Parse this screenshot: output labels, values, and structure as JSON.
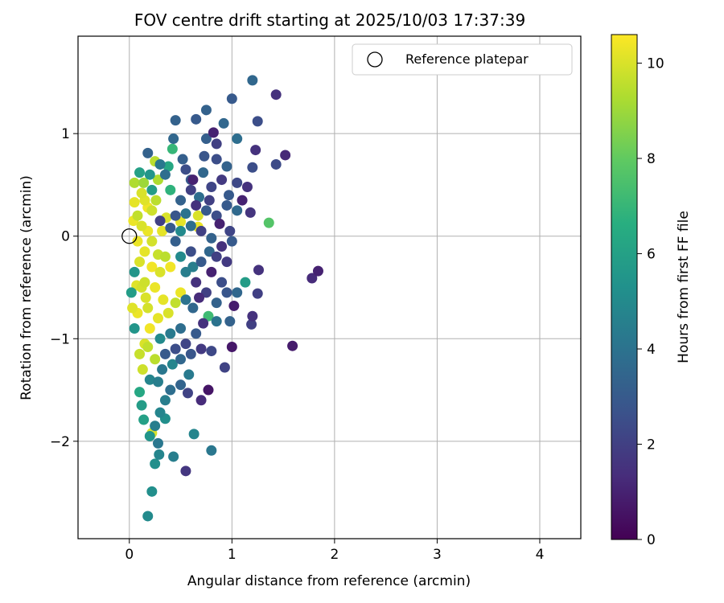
{
  "chart_data": {
    "type": "scatter",
    "title": "FOV centre drift starting at 2025/10/03 17:37:39",
    "xlabel": "Angular distance from reference (arcmin)",
    "ylabel": "Rotation from reference (arcmin)",
    "xlim": [
      -0.5,
      4.4
    ],
    "ylim": [
      -2.95,
      1.95
    ],
    "xticks": [
      0,
      1,
      2,
      3,
      4
    ],
    "yticks": [
      -2,
      -1,
      0,
      1
    ],
    "grid": true,
    "legend": {
      "position": "top-right",
      "entries": [
        {
          "label": "Reference platepar",
          "marker": "open-circle"
        }
      ]
    },
    "reference_point": {
      "x": 0,
      "y": 0
    },
    "colorbar": {
      "label": "Hours from first FF file",
      "min": 0,
      "max": 10.6,
      "ticks": [
        0,
        2,
        4,
        6,
        8,
        10
      ],
      "colormap": "viridis"
    },
    "points": [
      {
        "x": 1.2,
        "y": 1.52,
        "h": 3.5
      },
      {
        "x": 1.43,
        "y": 1.38,
        "h": 1.5
      },
      {
        "x": 1.0,
        "y": 1.34,
        "h": 3.0
      },
      {
        "x": 0.75,
        "y": 1.23,
        "h": 3.3
      },
      {
        "x": 1.25,
        "y": 1.12,
        "h": 2.5
      },
      {
        "x": 0.65,
        "y": 1.14,
        "h": 3.0
      },
      {
        "x": 0.45,
        "y": 1.13,
        "h": 3.3
      },
      {
        "x": 0.92,
        "y": 1.1,
        "h": 3.5
      },
      {
        "x": 0.82,
        "y": 1.01,
        "h": 1.0
      },
      {
        "x": 1.52,
        "y": 0.79,
        "h": 1.2
      },
      {
        "x": 1.23,
        "y": 0.84,
        "h": 1.5
      },
      {
        "x": 1.43,
        "y": 0.7,
        "h": 2.4
      },
      {
        "x": 1.05,
        "y": 0.95,
        "h": 3.8
      },
      {
        "x": 0.85,
        "y": 0.9,
        "h": 2.0
      },
      {
        "x": 0.75,
        "y": 0.95,
        "h": 3.2
      },
      {
        "x": 0.43,
        "y": 0.95,
        "h": 3.5
      },
      {
        "x": 0.18,
        "y": 0.81,
        "h": 3.3
      },
      {
        "x": 0.42,
        "y": 0.85,
        "h": 7.0
      },
      {
        "x": 0.25,
        "y": 0.73,
        "h": 9.5
      },
      {
        "x": 0.1,
        "y": 0.62,
        "h": 6.0
      },
      {
        "x": 0.14,
        "y": 0.52,
        "h": 9.0
      },
      {
        "x": 0.2,
        "y": 0.6,
        "h": 5.5
      },
      {
        "x": 0.28,
        "y": 0.55,
        "h": 9.3
      },
      {
        "x": 0.35,
        "y": 0.6,
        "h": 3.8
      },
      {
        "x": 0.4,
        "y": 0.45,
        "h": 6.8
      },
      {
        "x": 0.55,
        "y": 0.65,
        "h": 2.5
      },
      {
        "x": 0.62,
        "y": 0.55,
        "h": 1.0
      },
      {
        "x": 0.72,
        "y": 0.62,
        "h": 3.5
      },
      {
        "x": 0.8,
        "y": 0.48,
        "h": 2.2
      },
      {
        "x": 0.9,
        "y": 0.55,
        "h": 1.8
      },
      {
        "x": 0.97,
        "y": 0.4,
        "h": 3.0
      },
      {
        "x": 1.05,
        "y": 0.52,
        "h": 2.3
      },
      {
        "x": 1.15,
        "y": 0.48,
        "h": 1.5
      },
      {
        "x": 1.2,
        "y": 0.67,
        "h": 2.5
      },
      {
        "x": 1.1,
        "y": 0.35,
        "h": 1.0
      },
      {
        "x": 1.05,
        "y": 0.25,
        "h": 3.6
      },
      {
        "x": 1.18,
        "y": 0.23,
        "h": 1.6
      },
      {
        "x": 1.36,
        "y": 0.13,
        "h": 7.7
      },
      {
        "x": 0.95,
        "y": 0.3,
        "h": 3.0
      },
      {
        "x": 0.85,
        "y": 0.2,
        "h": 2.5
      },
      {
        "x": 0.75,
        "y": 0.25,
        "h": 3.0
      },
      {
        "x": 0.65,
        "y": 0.3,
        "h": 1.5
      },
      {
        "x": 0.55,
        "y": 0.22,
        "h": 4.0
      },
      {
        "x": 0.45,
        "y": 0.2,
        "h": 2.8
      },
      {
        "x": 0.5,
        "y": 0.35,
        "h": 3.3
      },
      {
        "x": 0.6,
        "y": 0.45,
        "h": 2.0
      },
      {
        "x": 0.68,
        "y": 0.38,
        "h": 3.8
      },
      {
        "x": 0.78,
        "y": 0.35,
        "h": 2.0
      },
      {
        "x": 0.88,
        "y": 0.12,
        "h": 1.0
      },
      {
        "x": 0.98,
        "y": 0.05,
        "h": 2.2
      },
      {
        "x": 1.0,
        "y": -0.05,
        "h": 3.0
      },
      {
        "x": 0.9,
        "y": -0.1,
        "h": 1.5
      },
      {
        "x": 0.8,
        "y": -0.02,
        "h": 3.3
      },
      {
        "x": 0.7,
        "y": 0.05,
        "h": 2.0
      },
      {
        "x": 0.6,
        "y": 0.1,
        "h": 3.8
      },
      {
        "x": 0.5,
        "y": 0.05,
        "h": 5.0
      },
      {
        "x": 0.4,
        "y": 0.08,
        "h": 3.0
      },
      {
        "x": 0.3,
        "y": 0.15,
        "h": 2.0
      },
      {
        "x": 0.22,
        "y": 0.25,
        "h": 9.8
      },
      {
        "x": 0.15,
        "y": 0.35,
        "h": 10.1
      },
      {
        "x": 0.05,
        "y": 0.33,
        "h": 10.2
      },
      {
        "x": 0.08,
        "y": 0.2,
        "h": 9.6
      },
      {
        "x": 0.12,
        "y": 0.1,
        "h": 10.0
      },
      {
        "x": 0.18,
        "y": 0.05,
        "h": 10.3
      },
      {
        "x": 0.22,
        "y": -0.05,
        "h": 9.9
      },
      {
        "x": 0.15,
        "y": -0.15,
        "h": 10.2
      },
      {
        "x": 0.1,
        "y": -0.25,
        "h": 10.0
      },
      {
        "x": 0.05,
        "y": -0.35,
        "h": 5.5
      },
      {
        "x": 0.15,
        "y": -0.45,
        "h": 9.8
      },
      {
        "x": 0.25,
        "y": -0.5,
        "h": 10.3
      },
      {
        "x": 0.3,
        "y": -0.35,
        "h": 10.0
      },
      {
        "x": 0.35,
        "y": -0.2,
        "h": 9.5
      },
      {
        "x": 0.4,
        "y": -0.3,
        "h": 10.4
      },
      {
        "x": 0.45,
        "y": -0.05,
        "h": 3.2
      },
      {
        "x": 0.5,
        "y": -0.2,
        "h": 5.0
      },
      {
        "x": 0.55,
        "y": -0.35,
        "h": 4.5
      },
      {
        "x": 0.6,
        "y": -0.15,
        "h": 2.5
      },
      {
        "x": 0.65,
        "y": -0.45,
        "h": 1.5
      },
      {
        "x": 0.7,
        "y": -0.25,
        "h": 3.0
      },
      {
        "x": 0.75,
        "y": -0.55,
        "h": 2.0
      },
      {
        "x": 0.8,
        "y": -0.35,
        "h": 1.0
      },
      {
        "x": 0.85,
        "y": -0.65,
        "h": 3.3
      },
      {
        "x": 0.9,
        "y": -0.45,
        "h": 2.5
      },
      {
        "x": 0.95,
        "y": -0.25,
        "h": 1.8
      },
      {
        "x": 1.05,
        "y": -0.55,
        "h": 3.5
      },
      {
        "x": 1.13,
        "y": -0.45,
        "h": 5.8
      },
      {
        "x": 1.25,
        "y": -0.56,
        "h": 2.0
      },
      {
        "x": 1.26,
        "y": -0.33,
        "h": 1.5
      },
      {
        "x": 1.78,
        "y": -0.41,
        "h": 1.3
      },
      {
        "x": 1.84,
        "y": -0.34,
        "h": 1.0
      },
      {
        "x": 1.2,
        "y": -0.78,
        "h": 1.5
      },
      {
        "x": 1.19,
        "y": -0.86,
        "h": 2.0
      },
      {
        "x": 0.98,
        "y": -0.83,
        "h": 3.3
      },
      {
        "x": 1.02,
        "y": -0.68,
        "h": 0.8
      },
      {
        "x": 0.85,
        "y": -0.83,
        "h": 4.0
      },
      {
        "x": 0.77,
        "y": -0.78,
        "h": 7.2
      },
      {
        "x": 0.72,
        "y": -0.85,
        "h": 1.5
      },
      {
        "x": 0.65,
        "y": -0.95,
        "h": 3.0
      },
      {
        "x": 0.55,
        "y": -1.05,
        "h": 2.2
      },
      {
        "x": 0.5,
        "y": -0.9,
        "h": 3.8
      },
      {
        "x": 0.45,
        "y": -1.1,
        "h": 2.5
      },
      {
        "x": 0.4,
        "y": -0.95,
        "h": 4.3
      },
      {
        "x": 0.35,
        "y": -1.15,
        "h": 3.0
      },
      {
        "x": 0.3,
        "y": -1.0,
        "h": 5.0
      },
      {
        "x": 0.25,
        "y": -1.2,
        "h": 9.5
      },
      {
        "x": 0.2,
        "y": -0.9,
        "h": 10.4
      },
      {
        "x": 0.15,
        "y": -1.05,
        "h": 10.0
      },
      {
        "x": 0.1,
        "y": -1.15,
        "h": 9.7
      },
      {
        "x": 0.05,
        "y": -0.9,
        "h": 5.5
      },
      {
        "x": 0.03,
        "y": -0.7,
        "h": 10.1
      },
      {
        "x": 0.08,
        "y": -0.75,
        "h": 10.3
      },
      {
        "x": 0.18,
        "y": -0.7,
        "h": 9.9
      },
      {
        "x": 0.28,
        "y": -0.8,
        "h": 10.2
      },
      {
        "x": 0.38,
        "y": -0.75,
        "h": 10.0
      },
      {
        "x": 0.45,
        "y": -0.65,
        "h": 9.6
      },
      {
        "x": 0.5,
        "y": -0.55,
        "h": 10.3
      },
      {
        "x": 0.55,
        "y": -0.62,
        "h": 4.0
      },
      {
        "x": 0.62,
        "y": -0.7,
        "h": 3.5
      },
      {
        "x": 0.68,
        "y": -0.6,
        "h": 1.3
      },
      {
        "x": 1.0,
        "y": -1.08,
        "h": 0.7
      },
      {
        "x": 1.59,
        "y": -1.07,
        "h": 0.8
      },
      {
        "x": 0.93,
        "y": -1.28,
        "h": 2.1
      },
      {
        "x": 0.77,
        "y": -1.5,
        "h": 0.6
      },
      {
        "x": 0.7,
        "y": -1.6,
        "h": 1.3
      },
      {
        "x": 0.57,
        "y": -1.53,
        "h": 2.1
      },
      {
        "x": 0.58,
        "y": -1.35,
        "h": 4.3
      },
      {
        "x": 0.5,
        "y": -1.45,
        "h": 3.4
      },
      {
        "x": 0.4,
        "y": -1.5,
        "h": 3.8
      },
      {
        "x": 0.35,
        "y": -1.6,
        "h": 4.5
      },
      {
        "x": 0.3,
        "y": -1.72,
        "h": 4.8
      },
      {
        "x": 0.35,
        "y": -1.78,
        "h": 5.2
      },
      {
        "x": 0.25,
        "y": -1.85,
        "h": 4.5
      },
      {
        "x": 0.2,
        "y": -1.95,
        "h": 5.5
      },
      {
        "x": 0.14,
        "y": -1.79,
        "h": 6.0
      },
      {
        "x": 0.12,
        "y": -1.65,
        "h": 5.8
      },
      {
        "x": 0.1,
        "y": -1.52,
        "h": 6.3
      },
      {
        "x": 0.22,
        "y": -1.92,
        "h": 10.0
      },
      {
        "x": 0.28,
        "y": -2.02,
        "h": 4.2
      },
      {
        "x": 0.29,
        "y": -2.13,
        "h": 4.8
      },
      {
        "x": 0.25,
        "y": -2.22,
        "h": 5.2
      },
      {
        "x": 0.43,
        "y": -2.15,
        "h": 4.5
      },
      {
        "x": 0.63,
        "y": -1.93,
        "h": 4.8
      },
      {
        "x": 0.8,
        "y": -2.09,
        "h": 4.2
      },
      {
        "x": 0.55,
        "y": -2.29,
        "h": 1.7
      },
      {
        "x": 0.22,
        "y": -2.49,
        "h": 5.2
      },
      {
        "x": 0.18,
        "y": -2.73,
        "h": 5.0
      },
      {
        "x": 0.13,
        "y": -1.3,
        "h": 9.8
      },
      {
        "x": 0.2,
        "y": -1.4,
        "h": 4.8
      },
      {
        "x": 0.32,
        "y": -1.3,
        "h": 4.2
      },
      {
        "x": 0.42,
        "y": -1.25,
        "h": 4.8
      },
      {
        "x": 0.5,
        "y": -1.2,
        "h": 3.5
      },
      {
        "x": 0.6,
        "y": -1.15,
        "h": 2.8
      },
      {
        "x": 0.7,
        "y": -1.1,
        "h": 1.8
      },
      {
        "x": 0.8,
        "y": -1.12,
        "h": 2.3
      },
      {
        "x": 0.12,
        "y": 0.42,
        "h": 10.0
      },
      {
        "x": 0.18,
        "y": 0.28,
        "h": 10.4
      },
      {
        "x": 0.26,
        "y": 0.35,
        "h": 9.5
      },
      {
        "x": 0.32,
        "y": 0.05,
        "h": 10.2
      },
      {
        "x": 0.36,
        "y": 0.18,
        "h": 10.0
      },
      {
        "x": 0.08,
        "y": -0.05,
        "h": 10.3
      },
      {
        "x": 0.12,
        "y": -0.5,
        "h": 9.9
      },
      {
        "x": 0.02,
        "y": -0.55,
        "h": 5.8
      },
      {
        "x": 0.07,
        "y": -0.48,
        "h": 10.1
      },
      {
        "x": 0.22,
        "y": -0.3,
        "h": 10.4
      },
      {
        "x": 0.28,
        "y": -0.18,
        "h": 9.7
      },
      {
        "x": 0.04,
        "y": 0.15,
        "h": 10.3
      },
      {
        "x": 0.5,
        "y": 0.14,
        "h": 10.2
      },
      {
        "x": 0.67,
        "y": 0.2,
        "h": 10.0
      },
      {
        "x": 0.67,
        "y": 0.09,
        "h": 10.3
      },
      {
        "x": 0.6,
        "y": 0.55,
        "h": 3.0
      },
      {
        "x": 0.85,
        "y": 0.75,
        "h": 2.5
      },
      {
        "x": 0.95,
        "y": 0.68,
        "h": 3.3
      },
      {
        "x": 0.73,
        "y": 0.78,
        "h": 2.8
      },
      {
        "x": 0.52,
        "y": 0.75,
        "h": 3.2
      },
      {
        "x": 0.38,
        "y": 0.68,
        "h": 6.3
      },
      {
        "x": 0.3,
        "y": 0.7,
        "h": 4.2
      },
      {
        "x": 0.22,
        "y": 0.45,
        "h": 5.8
      },
      {
        "x": 0.05,
        "y": 0.52,
        "h": 9.3
      },
      {
        "x": 0.85,
        "y": -0.2,
        "h": 2.0
      },
      {
        "x": 0.95,
        "y": -0.55,
        "h": 2.8
      },
      {
        "x": 0.78,
        "y": -0.15,
        "h": 3.5
      },
      {
        "x": 0.62,
        "y": -0.3,
        "h": 4.5
      },
      {
        "x": 0.33,
        "y": -0.62,
        "h": 10.2
      },
      {
        "x": 0.16,
        "y": -0.6,
        "h": 10.0
      },
      {
        "x": 0.28,
        "y": -1.42,
        "h": 4.5
      },
      {
        "x": 0.18,
        "y": -1.08,
        "h": 9.6
      }
    ]
  }
}
